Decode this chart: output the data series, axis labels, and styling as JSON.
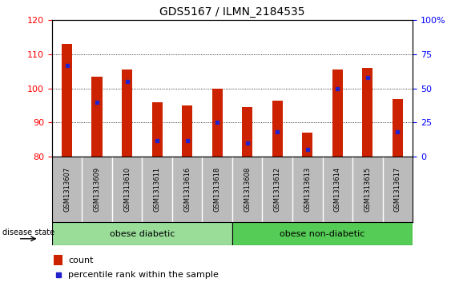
{
  "title": "GDS5167 / ILMN_2184535",
  "samples": [
    "GSM1313607",
    "GSM1313609",
    "GSM1313610",
    "GSM1313611",
    "GSM1313616",
    "GSM1313618",
    "GSM1313608",
    "GSM1313612",
    "GSM1313613",
    "GSM1313614",
    "GSM1313615",
    "GSM1313617"
  ],
  "counts": [
    113.0,
    103.5,
    105.5,
    96.0,
    95.0,
    100.0,
    94.5,
    96.5,
    87.0,
    105.5,
    106.0,
    97.0
  ],
  "percentile_ranks": [
    67,
    40,
    55,
    12,
    12,
    25,
    10,
    18,
    5,
    50,
    58,
    18
  ],
  "ylim_left": [
    80,
    120
  ],
  "ylim_right": [
    0,
    100
  ],
  "yticks_left": [
    80,
    90,
    100,
    110,
    120
  ],
  "yticks_right": [
    0,
    25,
    50,
    75,
    100
  ],
  "bar_color": "#cc2200",
  "dot_color": "#2222cc",
  "bar_width": 0.35,
  "group1_label": "obese diabetic",
  "group2_label": "obese non-diabetic",
  "group1_count": 6,
  "group2_count": 6,
  "group1_color": "#99dd99",
  "group2_color": "#55cc55",
  "tick_label_bg": "#bbbbbb",
  "legend_count_label": "count",
  "legend_pct_label": "percentile rank within the sample"
}
